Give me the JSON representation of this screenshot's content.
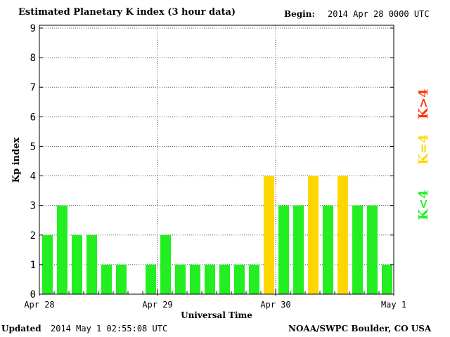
{
  "header": {
    "title": "Estimated Planetary K index (3 hour data)",
    "begin_label": "Begin:",
    "begin_value": "2014 Apr 28 0000 UTC"
  },
  "footer": {
    "updated_label": "Updated",
    "updated_value": "2014 May  1 02:55:08 UTC",
    "credit": "NOAA/SWPC Boulder, CO USA"
  },
  "legend": {
    "low": "K<4",
    "equal": "K=4",
    "high": "K>4"
  },
  "colors": {
    "low": "#22ee22",
    "equal": "#ffd700",
    "high": "#ff3300",
    "grid": "#555555"
  },
  "chart_data": {
    "type": "bar",
    "title": "Estimated Planetary K index (3 hour data)",
    "xlabel": "Universal Time",
    "ylabel": "Kp index",
    "ylim": [
      0,
      9
    ],
    "yticks": [
      "0",
      "1",
      "2",
      "3",
      "4",
      "5",
      "6",
      "7",
      "8",
      "9"
    ],
    "xticks": [
      "Apr 28",
      "Apr 29",
      "Apr 30",
      "May 1"
    ],
    "grid": true,
    "bars_per_day": 8,
    "values": [
      2,
      3,
      2,
      2,
      1,
      1,
      0,
      1,
      2,
      1,
      1,
      1,
      1,
      1,
      1,
      4,
      3,
      3,
      4,
      3,
      4,
      3,
      3,
      1
    ]
  }
}
